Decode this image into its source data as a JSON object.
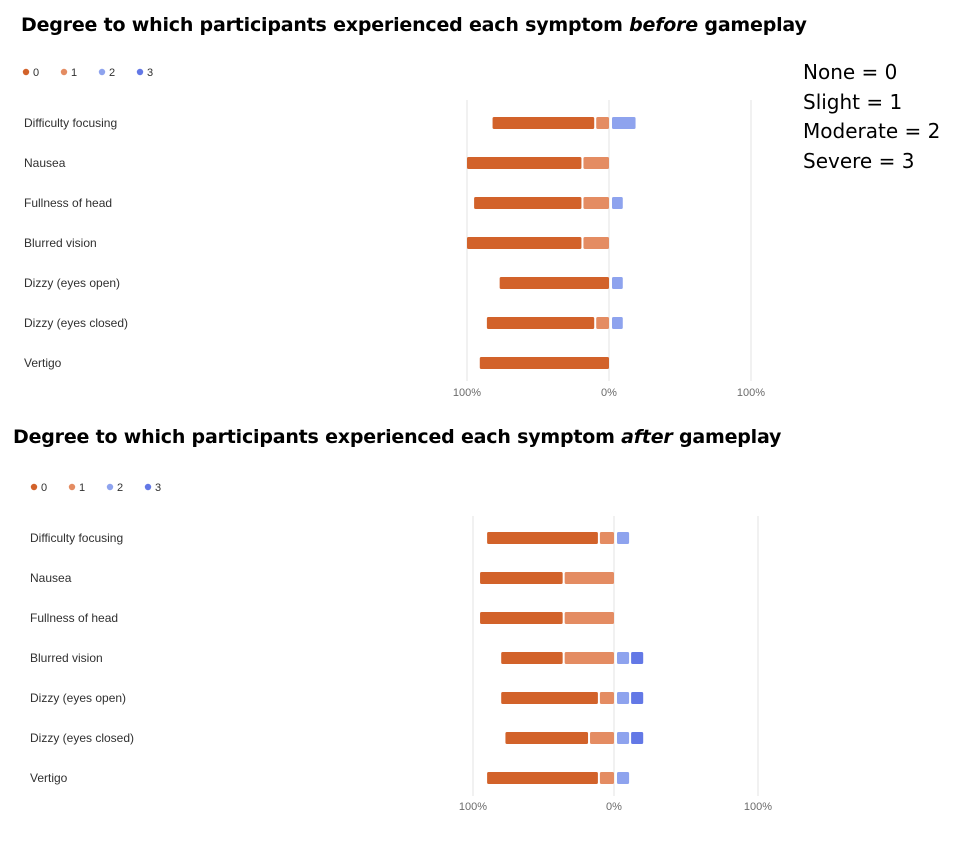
{
  "colors": {
    "0": "#d2622a",
    "1": "#e48c62",
    "2": "#8ea3ee",
    "3": "#6378e6",
    "grid": "#e3e3e3"
  },
  "scale_legend": [
    "None = 0",
    "Slight = 1",
    "Moderate = 2",
    "Severe = 3"
  ],
  "chart_data": [
    {
      "type": "bar",
      "title": {
        "before": "Degree to which participants experienced each symptom ",
        "emphasis": "before",
        "after": " gameplay"
      },
      "legend": [
        "0",
        "1",
        "2",
        "3"
      ],
      "categories": [
        "Difficulty focusing",
        "Nausea",
        "Fullness of head",
        "Blurred vision",
        "Dizzy (eyes open)",
        "Dizzy (eyes closed)",
        "Vertigo"
      ],
      "series": [
        {
          "name": "0",
          "values": [
            -0.73,
            -0.82,
            -0.77,
            -0.82,
            -0.77,
            -0.77,
            -0.91
          ]
        },
        {
          "name": "1",
          "values": [
            -0.09,
            -0.18,
            -0.18,
            -0.18,
            0,
            -0.09,
            0
          ]
        },
        {
          "name": "2",
          "values": [
            0.18,
            0,
            0.09,
            0,
            0.09,
            0.09,
            0
          ]
        },
        {
          "name": "3",
          "values": [
            0,
            0,
            0,
            0,
            0,
            0,
            0
          ]
        }
      ],
      "xlim": [
        -1,
        1
      ],
      "x_ticks": [
        "100%",
        "0%",
        "100%"
      ],
      "grid": true,
      "legend_position": "top-left"
    },
    {
      "type": "bar",
      "title": {
        "before": "Degree to which participants experienced each symptom ",
        "emphasis": "after",
        "after": " gameplay"
      },
      "legend": [
        "0",
        "1",
        "2",
        "3"
      ],
      "categories": [
        "Difficulty focusing",
        "Nausea",
        "Fullness of head",
        "Blurred vision",
        "Dizzy (eyes open)",
        "Dizzy (eyes closed)",
        "Vertigo"
      ],
      "series": [
        {
          "name": "0",
          "values": [
            -0.8,
            -0.6,
            -0.6,
            -0.45,
            -0.7,
            -0.6,
            -0.8
          ]
        },
        {
          "name": "1",
          "values": [
            -0.1,
            -0.35,
            -0.35,
            -0.35,
            -0.1,
            -0.17,
            -0.1
          ]
        },
        {
          "name": "2",
          "values": [
            0.1,
            0,
            0,
            0.1,
            0.1,
            0.1,
            0.1
          ]
        },
        {
          "name": "3",
          "values": [
            0,
            0,
            0,
            0.1,
            0.1,
            0.1,
            0
          ]
        }
      ],
      "xlim": [
        -1,
        1
      ],
      "x_ticks": [
        "100%",
        "0%",
        "100%"
      ],
      "grid": true,
      "legend_position": "top-left"
    }
  ]
}
